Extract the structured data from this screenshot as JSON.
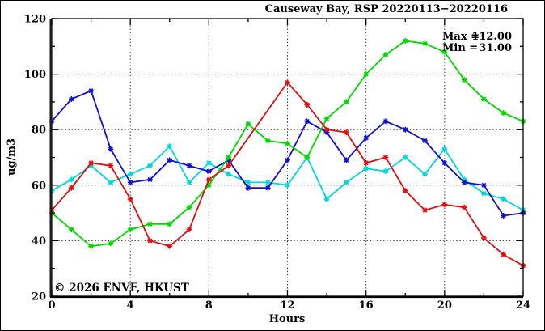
{
  "title": "Causeway Bay, RSP 20220113−20220116",
  "annotation": {
    "max_label": "Max =",
    "max_value": "112.00",
    "min_label": "Min =",
    "min_value": "31.00"
  },
  "watermark": "© 2026 ENVF, HKUST",
  "chart_data": {
    "type": "line",
    "title": "Causeway Bay, RSP 20220113−20220116",
    "xlabel": "Hours",
    "ylabel": "ug/m3",
    "xlim": [
      0,
      24
    ],
    "ylim": [
      20,
      120
    ],
    "x_ticks_major": [
      0,
      4,
      8,
      12,
      16,
      20,
      24
    ],
    "x_tick_labels": [
      "0",
      "4",
      "8",
      "12",
      "16",
      "20",
      "24"
    ],
    "x_ticks_minor": [
      2,
      6,
      10,
      14,
      18,
      22
    ],
    "y_ticks_major": [
      20,
      40,
      60,
      80,
      100,
      120
    ],
    "y_tick_labels": [
      "20",
      "40",
      "60",
      "80",
      "100",
      "120"
    ],
    "y_ticks_minor": [
      30,
      50,
      70,
      90,
      110
    ],
    "grid_x": [
      4,
      8,
      12,
      16,
      20
    ],
    "grid_y": [
      40,
      60,
      80,
      100
    ],
    "grid_style": "dotted",
    "legend": "none",
    "x": [
      0,
      1,
      2,
      3,
      4,
      5,
      6,
      7,
      8,
      9,
      10,
      11,
      12,
      13,
      14,
      15,
      16,
      17,
      18,
      19,
      20,
      21,
      22,
      23,
      24
    ],
    "series": [
      {
        "name": "cyan",
        "color": "#00d8d8",
        "values": [
          58,
          62,
          67,
          61,
          64,
          67,
          74,
          61,
          68,
          64,
          61,
          61,
          60,
          70,
          55,
          61,
          66,
          65,
          70,
          64,
          73,
          62,
          57,
          55,
          51
        ]
      },
      {
        "name": "blue",
        "color": "#1111cc",
        "values": [
          83,
          91,
          94,
          73,
          61,
          62,
          69,
          67,
          65,
          69,
          59,
          59,
          69,
          83,
          79,
          69,
          77,
          83,
          80,
          76,
          68,
          61,
          60,
          49,
          50
        ]
      },
      {
        "name": "green",
        "color": "#00d800",
        "values": [
          50,
          44,
          38,
          39,
          44,
          46,
          46,
          52,
          60,
          70,
          82,
          76,
          75,
          70,
          84,
          90,
          100,
          107,
          112,
          111,
          108,
          98,
          91,
          86,
          83
        ]
      },
      {
        "name": "red",
        "color": "#e01010",
        "values": [
          51,
          59,
          68,
          67,
          55,
          40,
          38,
          44,
          62,
          67,
          null,
          null,
          97,
          89,
          80,
          79,
          68,
          70,
          58,
          51,
          53,
          52,
          41,
          35,
          31
        ]
      }
    ],
    "max": 112.0,
    "min": 31.0
  }
}
